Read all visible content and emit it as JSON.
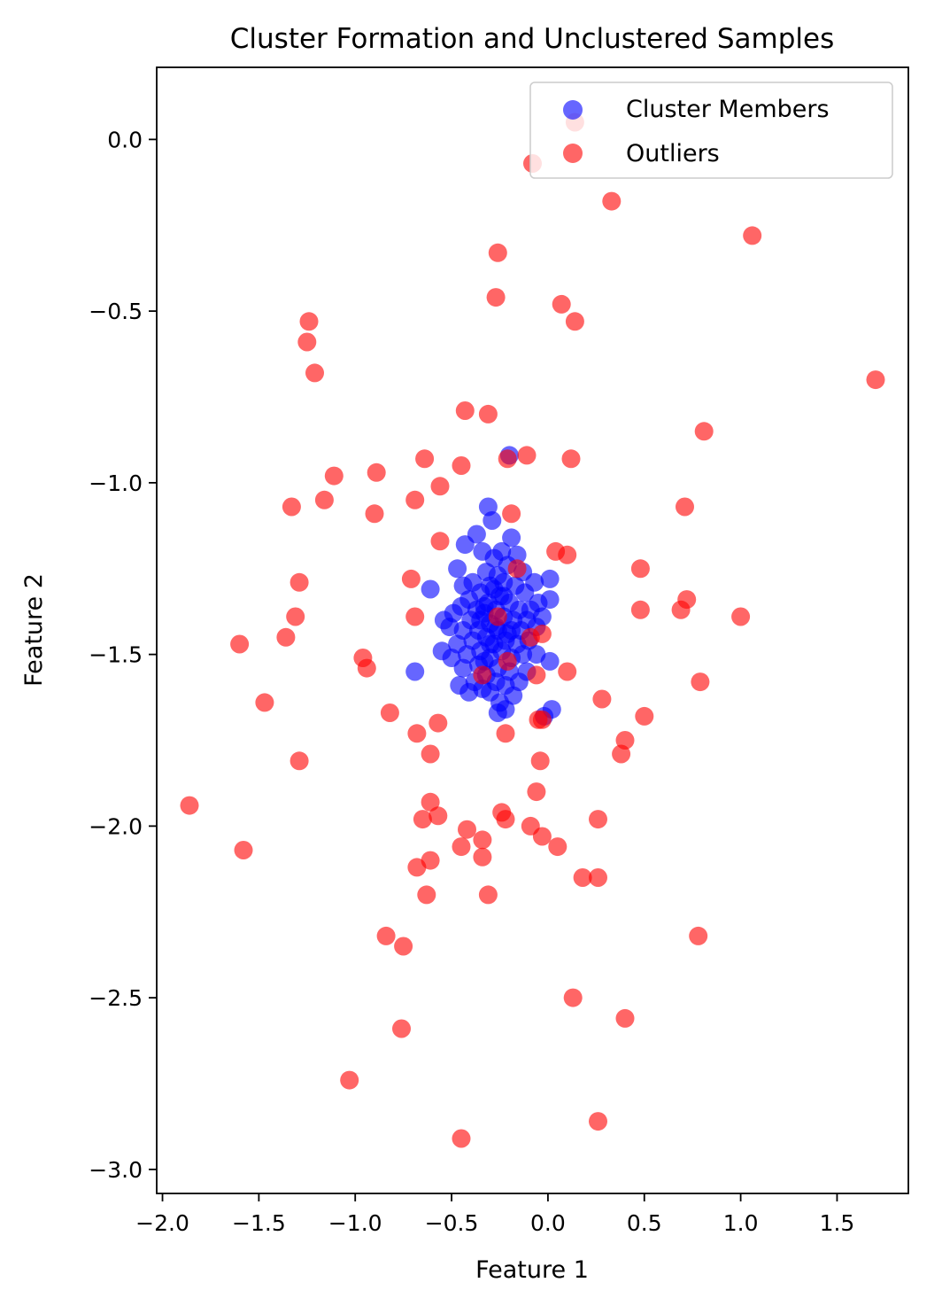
{
  "chart_data": {
    "type": "scatter",
    "title": "Cluster Formation and Unclustered Samples",
    "xlabel": "Feature 1",
    "ylabel": "Feature 2",
    "xlim": [
      -2.03,
      1.87
    ],
    "ylim": [
      -3.07,
      0.21
    ],
    "xticks": [
      -2.0,
      -1.5,
      -1.0,
      -0.5,
      0.0,
      0.5,
      1.0,
      1.5
    ],
    "xtick_labels": [
      "−2.0",
      "−1.5",
      "−1.0",
      "−0.5",
      "0.0",
      "0.5",
      "1.0",
      "1.5"
    ],
    "yticks": [
      0.0,
      -0.5,
      -1.0,
      -1.5,
      -2.0,
      -2.5,
      -3.0
    ],
    "ytick_labels": [
      "0.0",
      "−0.5",
      "−1.0",
      "−1.5",
      "−2.0",
      "−2.5",
      "−3.0"
    ],
    "grid": false,
    "legend": "top-right",
    "series": [
      {
        "name": "Cluster Members",
        "color": "#0000ff",
        "alpha": 0.6,
        "points": [
          [
            -0.2,
            -0.92
          ],
          [
            -0.31,
            -1.07
          ],
          [
            -0.29,
            -1.11
          ],
          [
            -0.37,
            -1.15
          ],
          [
            -0.43,
            -1.18
          ],
          [
            -0.34,
            -1.2
          ],
          [
            -0.19,
            -1.16
          ],
          [
            -0.24,
            -1.2
          ],
          [
            -0.16,
            -1.21
          ],
          [
            -0.28,
            -1.22
          ],
          [
            -0.47,
            -1.25
          ],
          [
            -0.21,
            -1.24
          ],
          [
            -0.32,
            -1.26
          ],
          [
            -0.26,
            -1.27
          ],
          [
            -0.13,
            -1.26
          ],
          [
            -0.39,
            -1.29
          ],
          [
            -0.23,
            -1.29
          ],
          [
            -0.3,
            -1.3
          ],
          [
            -0.17,
            -1.3
          ],
          [
            -0.44,
            -1.3
          ],
          [
            -0.61,
            -1.31
          ],
          [
            0.01,
            -1.28
          ],
          [
            -0.07,
            -1.29
          ],
          [
            -0.35,
            -1.32
          ],
          [
            -0.25,
            -1.33
          ],
          [
            -0.12,
            -1.32
          ],
          [
            -0.41,
            -1.34
          ],
          [
            -0.31,
            -1.35
          ],
          [
            -0.2,
            -1.35
          ],
          [
            -0.05,
            -1.35
          ],
          [
            0.01,
            -1.34
          ],
          [
            -0.45,
            -1.36
          ],
          [
            -0.37,
            -1.37
          ],
          [
            -0.27,
            -1.37
          ],
          [
            -0.15,
            -1.37
          ],
          [
            -0.09,
            -1.37
          ],
          [
            -0.33,
            -1.38
          ],
          [
            -0.23,
            -1.39
          ],
          [
            -0.49,
            -1.38
          ],
          [
            -0.4,
            -1.4
          ],
          [
            -0.18,
            -1.4
          ],
          [
            -0.11,
            -1.4
          ],
          [
            -0.03,
            -1.39
          ],
          [
            -0.54,
            -1.4
          ],
          [
            -0.3,
            -1.41
          ],
          [
            -0.36,
            -1.43
          ],
          [
            -0.26,
            -1.43
          ],
          [
            -0.19,
            -1.43
          ],
          [
            -0.44,
            -1.43
          ],
          [
            -0.51,
            -1.42
          ],
          [
            -0.14,
            -1.43
          ],
          [
            -0.06,
            -1.42
          ],
          [
            -0.32,
            -1.45
          ],
          [
            -0.22,
            -1.46
          ],
          [
            -0.39,
            -1.46
          ],
          [
            -0.28,
            -1.47
          ],
          [
            -0.16,
            -1.47
          ],
          [
            -0.47,
            -1.47
          ],
          [
            -0.1,
            -1.46
          ],
          [
            -0.55,
            -1.49
          ],
          [
            -0.35,
            -1.49
          ],
          [
            -0.24,
            -1.49
          ],
          [
            -0.42,
            -1.5
          ],
          [
            -0.3,
            -1.51
          ],
          [
            -0.19,
            -1.51
          ],
          [
            -0.5,
            -1.51
          ],
          [
            -0.13,
            -1.5
          ],
          [
            -0.06,
            -1.5
          ],
          [
            0.01,
            -1.52
          ],
          [
            -0.36,
            -1.53
          ],
          [
            -0.26,
            -1.54
          ],
          [
            -0.44,
            -1.54
          ],
          [
            -0.2,
            -1.55
          ],
          [
            -0.69,
            -1.55
          ],
          [
            -0.32,
            -1.56
          ],
          [
            -0.11,
            -1.55
          ],
          [
            -0.38,
            -1.58
          ],
          [
            -0.27,
            -1.58
          ],
          [
            -0.46,
            -1.59
          ],
          [
            -0.22,
            -1.59
          ],
          [
            -0.15,
            -1.58
          ],
          [
            -0.34,
            -1.6
          ],
          [
            -0.41,
            -1.61
          ],
          [
            -0.3,
            -1.61
          ],
          [
            -0.18,
            -1.62
          ],
          [
            -0.25,
            -1.64
          ],
          [
            -0.22,
            -1.66
          ],
          [
            -0.26,
            -1.67
          ],
          [
            0.02,
            -1.66
          ],
          [
            -0.02,
            -1.68
          ],
          [
            -0.33,
            -1.36
          ],
          [
            -0.27,
            -1.42
          ],
          [
            -0.23,
            -1.33
          ],
          [
            -0.3,
            -1.47
          ],
          [
            -0.35,
            -1.4
          ],
          [
            -0.21,
            -1.44
          ],
          [
            -0.28,
            -1.31
          ],
          [
            -0.33,
            -1.52
          ]
        ]
      },
      {
        "name": "Outliers",
        "color": "#ff0000",
        "alpha": 0.6,
        "points": [
          [
            -0.08,
            -0.07
          ],
          [
            0.14,
            0.05
          ],
          [
            0.33,
            -0.18
          ],
          [
            1.06,
            -0.28
          ],
          [
            -0.26,
            -0.33
          ],
          [
            -0.27,
            -0.46
          ],
          [
            0.07,
            -0.48
          ],
          [
            0.14,
            -0.53
          ],
          [
            -1.24,
            -0.53
          ],
          [
            -1.25,
            -0.59
          ],
          [
            -1.21,
            -0.68
          ],
          [
            1.7,
            -0.7
          ],
          [
            -0.43,
            -0.79
          ],
          [
            -0.31,
            -0.8
          ],
          [
            0.81,
            -0.85
          ],
          [
            -0.64,
            -0.93
          ],
          [
            -0.45,
            -0.95
          ],
          [
            -0.21,
            -0.93
          ],
          [
            -0.11,
            -0.92
          ],
          [
            0.12,
            -0.93
          ],
          [
            -1.11,
            -0.98
          ],
          [
            -0.89,
            -0.97
          ],
          [
            -0.56,
            -1.01
          ],
          [
            -0.69,
            -1.05
          ],
          [
            -1.16,
            -1.05
          ],
          [
            -1.33,
            -1.07
          ],
          [
            -0.9,
            -1.09
          ],
          [
            -0.19,
            -1.09
          ],
          [
            0.71,
            -1.07
          ],
          [
            -0.56,
            -1.17
          ],
          [
            0.04,
            -1.2
          ],
          [
            0.1,
            -1.21
          ],
          [
            -0.16,
            -1.25
          ],
          [
            0.48,
            -1.25
          ],
          [
            -0.71,
            -1.28
          ],
          [
            -1.29,
            -1.29
          ],
          [
            0.72,
            -1.34
          ],
          [
            0.69,
            -1.37
          ],
          [
            0.48,
            -1.37
          ],
          [
            -1.31,
            -1.39
          ],
          [
            -0.69,
            -1.39
          ],
          [
            -0.26,
            -1.39
          ],
          [
            1.0,
            -1.39
          ],
          [
            -0.09,
            -1.45
          ],
          [
            -0.03,
            -1.44
          ],
          [
            -1.36,
            -1.45
          ],
          [
            -1.6,
            -1.47
          ],
          [
            -0.96,
            -1.51
          ],
          [
            -0.94,
            -1.54
          ],
          [
            -0.21,
            -1.52
          ],
          [
            0.1,
            -1.55
          ],
          [
            -0.34,
            -1.56
          ],
          [
            -0.06,
            -1.56
          ],
          [
            0.79,
            -1.58
          ],
          [
            -1.47,
            -1.64
          ],
          [
            0.28,
            -1.63
          ],
          [
            -0.82,
            -1.67
          ],
          [
            -0.57,
            -1.7
          ],
          [
            -0.05,
            -1.69
          ],
          [
            -0.03,
            -1.69
          ],
          [
            0.5,
            -1.68
          ],
          [
            -0.68,
            -1.73
          ],
          [
            -0.22,
            -1.73
          ],
          [
            0.4,
            -1.75
          ],
          [
            0.38,
            -1.79
          ],
          [
            -0.61,
            -1.79
          ],
          [
            -1.29,
            -1.81
          ],
          [
            -0.04,
            -1.81
          ],
          [
            -0.06,
            -1.9
          ],
          [
            -1.86,
            -1.94
          ],
          [
            -0.61,
            -1.93
          ],
          [
            -0.65,
            -1.98
          ],
          [
            -0.57,
            -1.97
          ],
          [
            -0.24,
            -1.96
          ],
          [
            -0.22,
            -1.98
          ],
          [
            0.26,
            -1.98
          ],
          [
            -0.42,
            -2.01
          ],
          [
            -0.09,
            -2.0
          ],
          [
            -0.03,
            -2.03
          ],
          [
            -0.34,
            -2.04
          ],
          [
            -0.45,
            -2.06
          ],
          [
            0.05,
            -2.06
          ],
          [
            -1.58,
            -2.07
          ],
          [
            -0.61,
            -2.1
          ],
          [
            -0.34,
            -2.09
          ],
          [
            -0.68,
            -2.12
          ],
          [
            0.18,
            -2.15
          ],
          [
            0.26,
            -2.15
          ],
          [
            -0.63,
            -2.2
          ],
          [
            -0.31,
            -2.2
          ],
          [
            -0.84,
            -2.32
          ],
          [
            0.78,
            -2.32
          ],
          [
            -0.75,
            -2.35
          ],
          [
            0.13,
            -2.5
          ],
          [
            0.4,
            -2.56
          ],
          [
            -0.76,
            -2.59
          ],
          [
            -1.03,
            -2.74
          ],
          [
            0.26,
            -2.86
          ],
          [
            -0.45,
            -2.91
          ]
        ]
      }
    ]
  }
}
